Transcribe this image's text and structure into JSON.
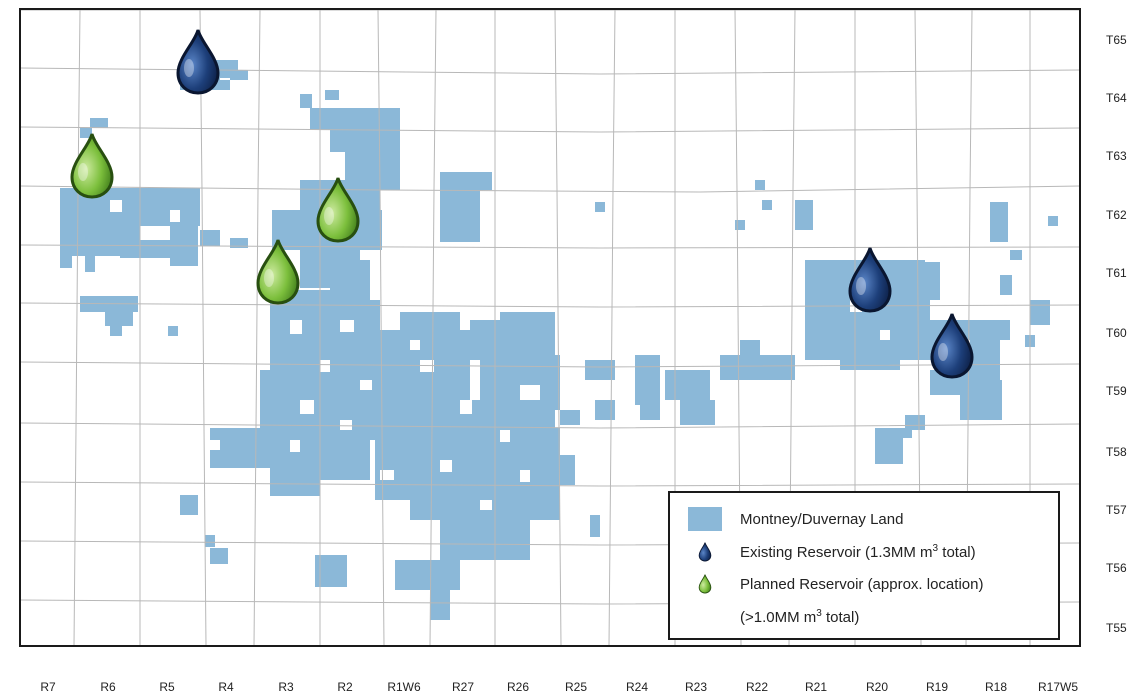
{
  "township_labels": [
    "T65",
    "T64",
    "T63",
    "T62",
    "T61",
    "T60",
    "T59",
    "T58",
    "T57",
    "T56",
    "T55"
  ],
  "range_labels": [
    "R7",
    "R6",
    "R5",
    "R4",
    "R3",
    "R2",
    "R1W6",
    "R27",
    "R26",
    "R25",
    "R24",
    "R23",
    "R22",
    "R21",
    "R20",
    "R19",
    "R18",
    "R17W5"
  ],
  "legend": {
    "land_label": "Montney/Duvernay Land",
    "existing_label_prefix": "Existing Reservoir (1.3MM m",
    "existing_label_sup": "3",
    "existing_label_suffix": " total)",
    "planned_label": "Planned Reservoir (approx. location)",
    "planned_note_prefix": "(>1.0MM m",
    "planned_note_sup": "3",
    "planned_note_suffix": " total)"
  },
  "colors": {
    "land": "#8bb8d8",
    "existing_reservoir": "#1d3f7a",
    "planned_reservoir": "#7cbf3c",
    "grid": "#b8b8b8",
    "frame": "#1a1a1a"
  },
  "markers": [
    {
      "type": "existing",
      "icon": "blue-oil-drop-icon",
      "range": "R4",
      "township": "T65"
    },
    {
      "type": "planned",
      "icon": "green-oil-drop-icon",
      "range": "R6",
      "township": "T63"
    },
    {
      "type": "planned",
      "icon": "green-oil-drop-icon",
      "range": "R2",
      "township": "T62"
    },
    {
      "type": "planned",
      "icon": "green-oil-drop-icon",
      "range": "R3",
      "township": "T61"
    },
    {
      "type": "existing",
      "icon": "blue-oil-drop-icon",
      "range": "R20",
      "township": "T61"
    },
    {
      "type": "existing",
      "icon": "blue-oil-drop-icon",
      "range": "R19",
      "township": "T60"
    }
  ]
}
